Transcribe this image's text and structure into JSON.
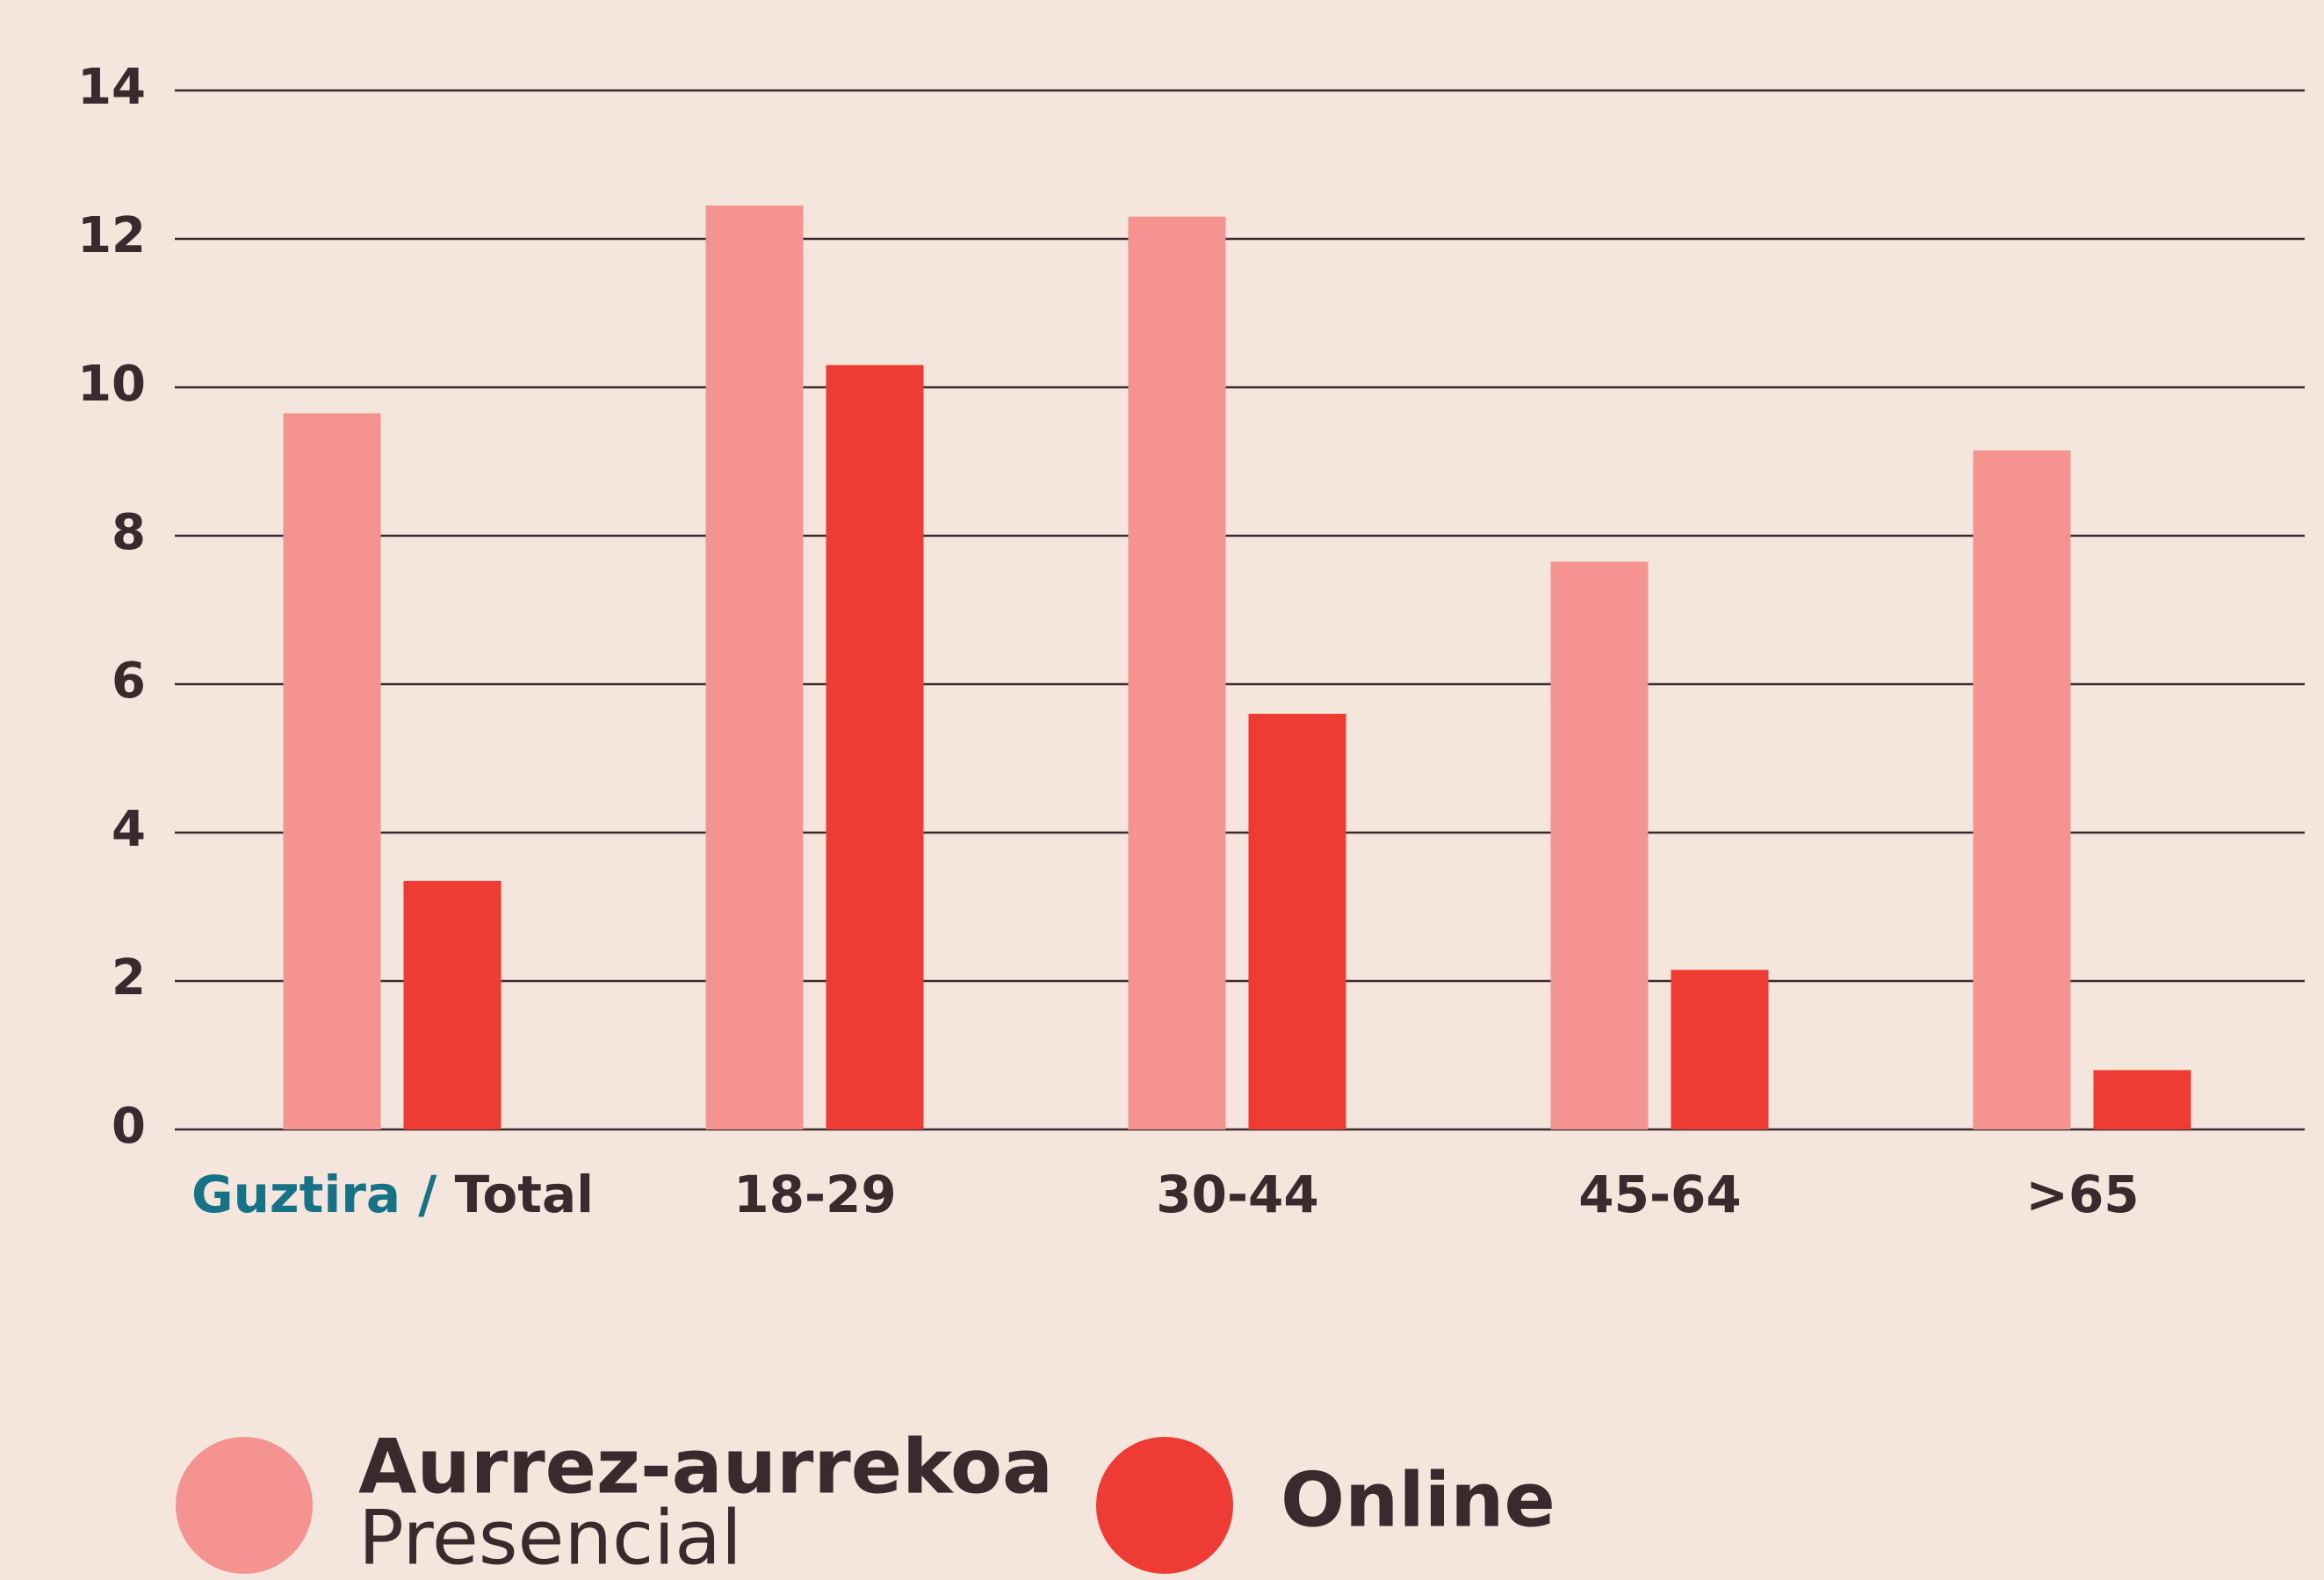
{
  "chart_data": {
    "type": "bar",
    "total_label_eu": "Guztira /",
    "categories": [
      "Total",
      "18-29",
      "30-44",
      "45-64",
      ">65"
    ],
    "series": [
      {
        "name": "Aurrez-aurrekoa",
        "name_es": "Presencial",
        "color": "#f59391",
        "values": [
          9.65,
          12.45,
          12.3,
          7.65,
          9.15
        ]
      },
      {
        "name": "Online",
        "color": "#ee3b33",
        "values": [
          3.35,
          10.3,
          5.6,
          2.15,
          0.8
        ]
      }
    ],
    "ylim": [
      0,
      14
    ],
    "yticks": [
      0,
      2,
      4,
      6,
      8,
      10,
      12,
      14
    ],
    "grid": true
  }
}
